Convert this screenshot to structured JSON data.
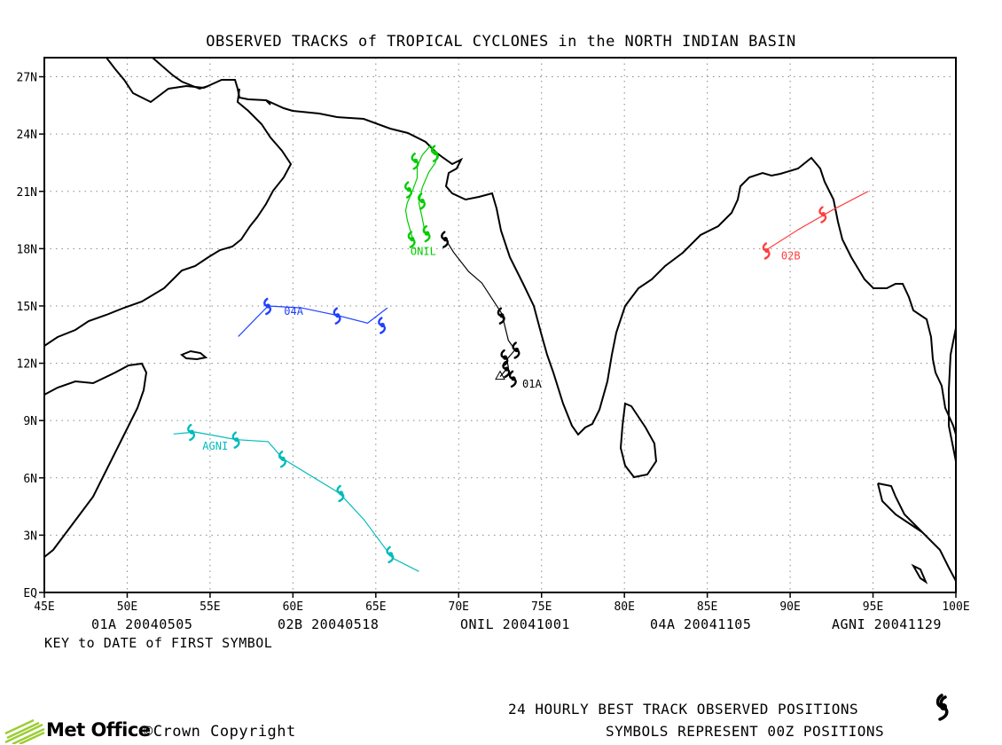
{
  "title": "OBSERVED TRACKS of TROPICAL CYCLONES in the NORTH INDIAN BASIN",
  "axes": {
    "lon_labels": [
      "45E",
      "50E",
      "55E",
      "60E",
      "65E",
      "70E",
      "75E",
      "80E",
      "85E",
      "90E",
      "95E",
      "100E"
    ],
    "lat_labels": [
      "EQ",
      "3N",
      "6N",
      "9N",
      "12N",
      "15N",
      "18N",
      "21N",
      "24N",
      "27N"
    ],
    "lon_range": [
      45,
      100
    ],
    "lat_range": [
      0,
      28
    ],
    "grid": "dotted"
  },
  "storms": [
    {
      "id": "01A",
      "color": "#000000",
      "label": "01A",
      "first_date": "20040505",
      "track": [
        [
          72.5,
          11.3
        ],
        [
          73,
          11.8
        ],
        [
          72.9,
          12.2
        ],
        [
          73.1,
          12.4
        ],
        [
          73.4,
          12.7
        ],
        [
          73.0,
          13.2
        ],
        [
          72.8,
          13.9
        ],
        [
          72.6,
          14.6
        ],
        [
          71.4,
          16.2
        ],
        [
          70.6,
          16.8
        ],
        [
          69.7,
          17.8
        ],
        [
          69.2,
          18.5
        ]
      ],
      "symbols": [
        [
          73.3,
          11.2
        ],
        [
          72.9,
          11.7
        ],
        [
          72.8,
          12.3
        ],
        [
          73.5,
          12.7
        ],
        [
          72.6,
          14.5
        ],
        [
          69.2,
          18.5
        ]
      ]
    },
    {
      "id": "02B",
      "color": "#ff4040",
      "label": "02B",
      "first_date": "20040518",
      "track": [
        [
          88.5,
          17.9
        ],
        [
          90.5,
          19.0
        ],
        [
          92.5,
          20.0
        ],
        [
          94.7,
          21.0
        ]
      ],
      "symbols": [
        [
          88.6,
          17.9
        ],
        [
          92.0,
          19.8
        ]
      ]
    },
    {
      "id": "ONIL",
      "color": "#00cc00",
      "label": "ONIL",
      "first_date": "20041001",
      "track": [
        [
          67.2,
          18.6
        ],
        [
          66.9,
          19.5
        ],
        [
          66.8,
          20.0
        ],
        [
          66.9,
          20.4
        ],
        [
          67.2,
          21.0
        ],
        [
          67.5,
          21.7
        ],
        [
          67.5,
          22.3
        ],
        [
          67.8,
          22.9
        ],
        [
          68.3,
          23.4
        ],
        [
          68.7,
          22.9
        ],
        [
          68.6,
          22.5
        ],
        [
          68.2,
          22.0
        ],
        [
          67.8,
          21.2
        ],
        [
          67.6,
          20.4
        ],
        [
          67.8,
          19.6
        ],
        [
          68.0,
          18.7
        ]
      ],
      "symbols": [
        [
          67.2,
          18.5
        ],
        [
          68.1,
          18.8
        ],
        [
          67.8,
          20.5
        ],
        [
          67.0,
          21.1
        ],
        [
          67.4,
          22.6
        ],
        [
          68.6,
          23.0
        ]
      ]
    },
    {
      "id": "04A",
      "color": "#2040ff",
      "label": "04A",
      "first_date": "20041105",
      "track": [
        [
          56.7,
          13.4
        ],
        [
          58.5,
          15.0
        ],
        [
          60.5,
          14.9
        ],
        [
          62.7,
          14.5
        ],
        [
          64.5,
          14.1
        ],
        [
          65.7,
          14.9
        ]
      ],
      "symbols": [
        [
          58.5,
          15.0
        ],
        [
          62.7,
          14.5
        ],
        [
          65.4,
          14.0
        ]
      ]
    },
    {
      "id": "AGNI",
      "color": "#00bbbb",
      "label": "AGNI",
      "first_date": "20041129",
      "track": [
        [
          52.8,
          8.3
        ],
        [
          54.1,
          8.4
        ],
        [
          56.6,
          8.0
        ],
        [
          58.5,
          7.9
        ],
        [
          59.4,
          7.0
        ],
        [
          62.8,
          5.2
        ],
        [
          64.3,
          3.8
        ],
        [
          66.0,
          1.8
        ],
        [
          67.6,
          1.1
        ]
      ],
      "symbols": [
        [
          53.9,
          8.4
        ],
        [
          56.6,
          8.0
        ],
        [
          59.4,
          7.0
        ],
        [
          62.9,
          5.2
        ],
        [
          65.9,
          2.0
        ]
      ]
    }
  ],
  "key_caption": "KEY to DATE of FIRST SYMBOL",
  "legend": {
    "line1": "24 HOURLY BEST TRACK OBSERVED POSITIONS",
    "line2": "SYMBOLS REPRESENT 00Z POSITIONS",
    "symbol_icon": "cyclone-symbol-icon"
  },
  "footer": {
    "brand": "Met Office",
    "copyright": "©Crown Copyright",
    "logo_icon": "met-office-logo-icon"
  },
  "colors": {
    "coast": "#000000",
    "frame": "#000000",
    "grid": "#888888"
  }
}
